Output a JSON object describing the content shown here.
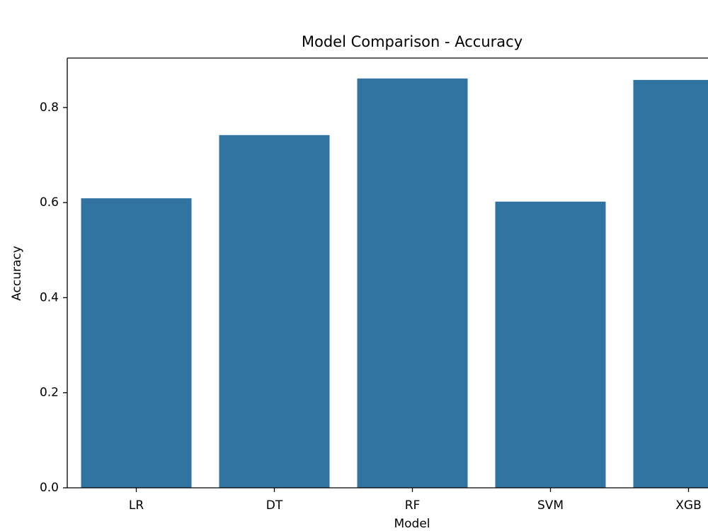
{
  "chart_data": {
    "type": "bar",
    "title": "Model Comparison - Accuracy",
    "x_label": "Model",
    "y_label": "Accuracy",
    "categories": [
      "LR",
      "DT",
      "RF",
      "SVM",
      "XGB"
    ],
    "values": [
      0.609,
      0.742,
      0.861,
      0.602,
      0.858
    ],
    "color": "#3274a1",
    "ylim": [
      0,
      0.904
    ],
    "yticks": [
      {
        "value": 0,
        "label": "0.0"
      },
      0.2,
      0.4,
      0.6,
      0.8
    ],
    "grid": false
  }
}
